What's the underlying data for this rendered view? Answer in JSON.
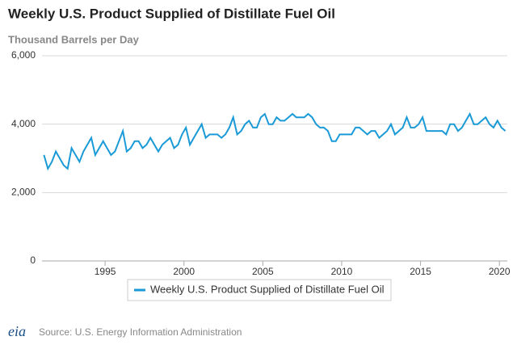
{
  "chart_data": {
    "type": "line",
    "title": "Weekly U.S. Product Supplied of Distillate Fuel Oil",
    "subtitle": "Thousand Barrels per Day",
    "source": "Source: U.S. Energy Information Administration",
    "logo": "eia",
    "x": [
      1991.125,
      1991.375,
      1991.625,
      1991.875,
      1992.125,
      1992.375,
      1992.625,
      1992.875,
      1993.125,
      1993.375,
      1993.625,
      1993.875,
      1994.125,
      1994.375,
      1994.625,
      1994.875,
      1995.125,
      1995.375,
      1995.625,
      1995.875,
      1996.125,
      1996.375,
      1996.625,
      1996.875,
      1997.125,
      1997.375,
      1997.625,
      1997.875,
      1998.125,
      1998.375,
      1998.625,
      1998.875,
      1999.125,
      1999.375,
      1999.625,
      1999.875,
      2000.125,
      2000.375,
      2000.625,
      2000.875,
      2001.125,
      2001.375,
      2001.625,
      2001.875,
      2002.125,
      2002.375,
      2002.625,
      2002.875,
      2003.125,
      2003.375,
      2003.625,
      2003.875,
      2004.125,
      2004.375,
      2004.625,
      2004.875,
      2005.125,
      2005.375,
      2005.625,
      2005.875,
      2006.125,
      2006.375,
      2006.625,
      2006.875,
      2007.125,
      2007.375,
      2007.625,
      2007.875,
      2008.125,
      2008.375,
      2008.625,
      2008.875,
      2009.125,
      2009.375,
      2009.625,
      2009.875,
      2010.125,
      2010.375,
      2010.625,
      2010.875,
      2011.125,
      2011.375,
      2011.625,
      2011.875,
      2012.125,
      2012.375,
      2012.625,
      2012.875,
      2013.125,
      2013.375,
      2013.625,
      2013.875,
      2014.125,
      2014.375,
      2014.625,
      2014.875,
      2015.125,
      2015.375,
      2015.625,
      2015.875,
      2016.125,
      2016.375,
      2016.625,
      2016.875,
      2017.125,
      2017.375,
      2017.625,
      2017.875,
      2018.125,
      2018.375,
      2018.625,
      2018.875,
      2019.125,
      2019.375,
      2019.625,
      2019.875,
      2020.125,
      2020.375
    ],
    "series": [
      {
        "name": "Weekly U.S. Product Supplied of Distillate Fuel Oil",
        "color": "#1a9ad6",
        "values": [
          3100,
          2700,
          2900,
          3200,
          3000,
          2800,
          2700,
          3300,
          3100,
          2900,
          3200,
          3400,
          3600,
          3100,
          3300,
          3500,
          3300,
          3100,
          3200,
          3500,
          3800,
          3200,
          3300,
          3500,
          3500,
          3300,
          3400,
          3600,
          3400,
          3200,
          3400,
          3500,
          3600,
          3300,
          3400,
          3700,
          3900,
          3400,
          3600,
          3800,
          4000,
          3600,
          3700,
          3700,
          3700,
          3600,
          3700,
          3900,
          4200,
          3700,
          3800,
          4000,
          4100,
          3900,
          3900,
          4200,
          4300,
          4000,
          4000,
          4200,
          4100,
          4100,
          4200,
          4300,
          4200,
          4200,
          4200,
          4300,
          4200,
          4000,
          3900,
          3900,
          3800,
          3500,
          3500,
          3700,
          3700,
          3700,
          3700,
          3900,
          3900,
          3800,
          3700,
          3800,
          3800,
          3600,
          3700,
          3800,
          4000,
          3700,
          3800,
          3900,
          4200,
          3900,
          3900,
          4000,
          4200,
          3800,
          3800,
          3800,
          3800,
          3800,
          3700,
          4000,
          4000,
          3800,
          3900,
          4100,
          4300,
          4000,
          4000,
          4100,
          4200,
          4000,
          3900,
          4100,
          3900,
          3800
        ]
      }
    ],
    "xlim": [
      1991,
      2020.5
    ],
    "xticks": [
      1995,
      2000,
      2005,
      2010,
      2015,
      2020
    ],
    "ylim": [
      0,
      6000
    ],
    "yticks": [
      0,
      {
        "value": 2000,
        "label": "2,000"
      },
      {
        "value": 4000,
        "label": "4,000"
      },
      {
        "value": 6000,
        "label": "6,000"
      }
    ],
    "grid": true
  }
}
